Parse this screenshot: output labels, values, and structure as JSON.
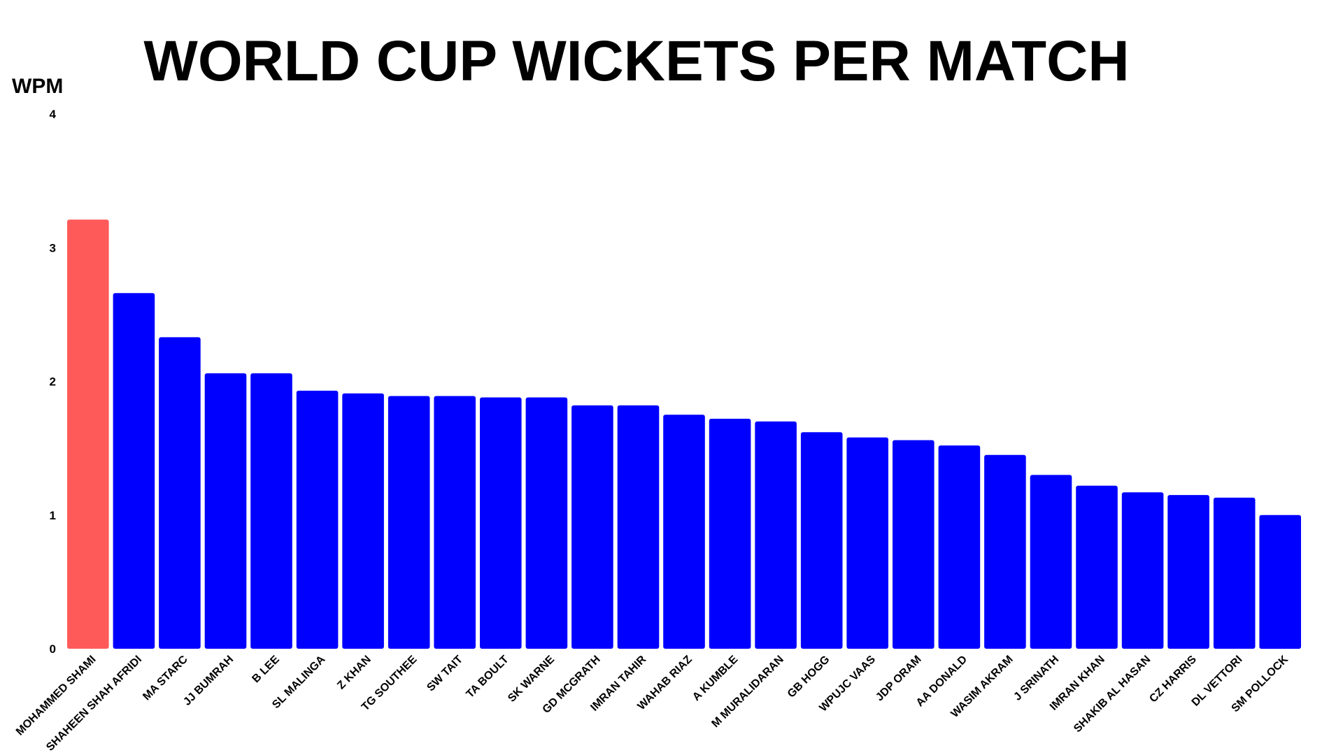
{
  "chart_data": {
    "type": "bar",
    "title": "WORLD CUP WICKETS PER MATCH",
    "ylabel": "WPM",
    "xlabel": "",
    "ylim": [
      0,
      4
    ],
    "yticks": [
      "0",
      "1",
      "2",
      "3",
      "4"
    ],
    "grid": false,
    "highlight_color": "#FF5A5A",
    "bar_color": "#0000FF",
    "categories": [
      "MOHAMMED SHAMI",
      "SHAHEEN SHAH AFRIDI",
      "MA STARC",
      "JJ BUMRAH",
      "B LEE",
      "SL MALINGA",
      "Z KHAN",
      "TG SOUTHEE",
      "SW TAIT",
      "TA BOULT",
      "SK WARNE",
      "GD MCGRATH",
      "IMRAN TAHIR",
      "WAHAB RIAZ",
      "A KUMBLE",
      "M MURALIDARAN",
      "GB HOGG",
      "WPUJC VAAS",
      "JDP ORAM",
      "AA DONALD",
      "WASIM AKRAM",
      "J SRINATH",
      "IMRAN KHAN",
      "SHAKIB AL HASAN",
      "CZ HARRIS",
      "DL VETTORI",
      "SM POLLOCK"
    ],
    "values": [
      3.21,
      2.66,
      2.33,
      2.06,
      2.06,
      1.93,
      1.91,
      1.89,
      1.89,
      1.88,
      1.88,
      1.82,
      1.82,
      1.75,
      1.72,
      1.7,
      1.62,
      1.58,
      1.56,
      1.52,
      1.45,
      1.3,
      1.22,
      1.17,
      1.15,
      1.13,
      1.0
    ],
    "highlight_index": 0
  }
}
